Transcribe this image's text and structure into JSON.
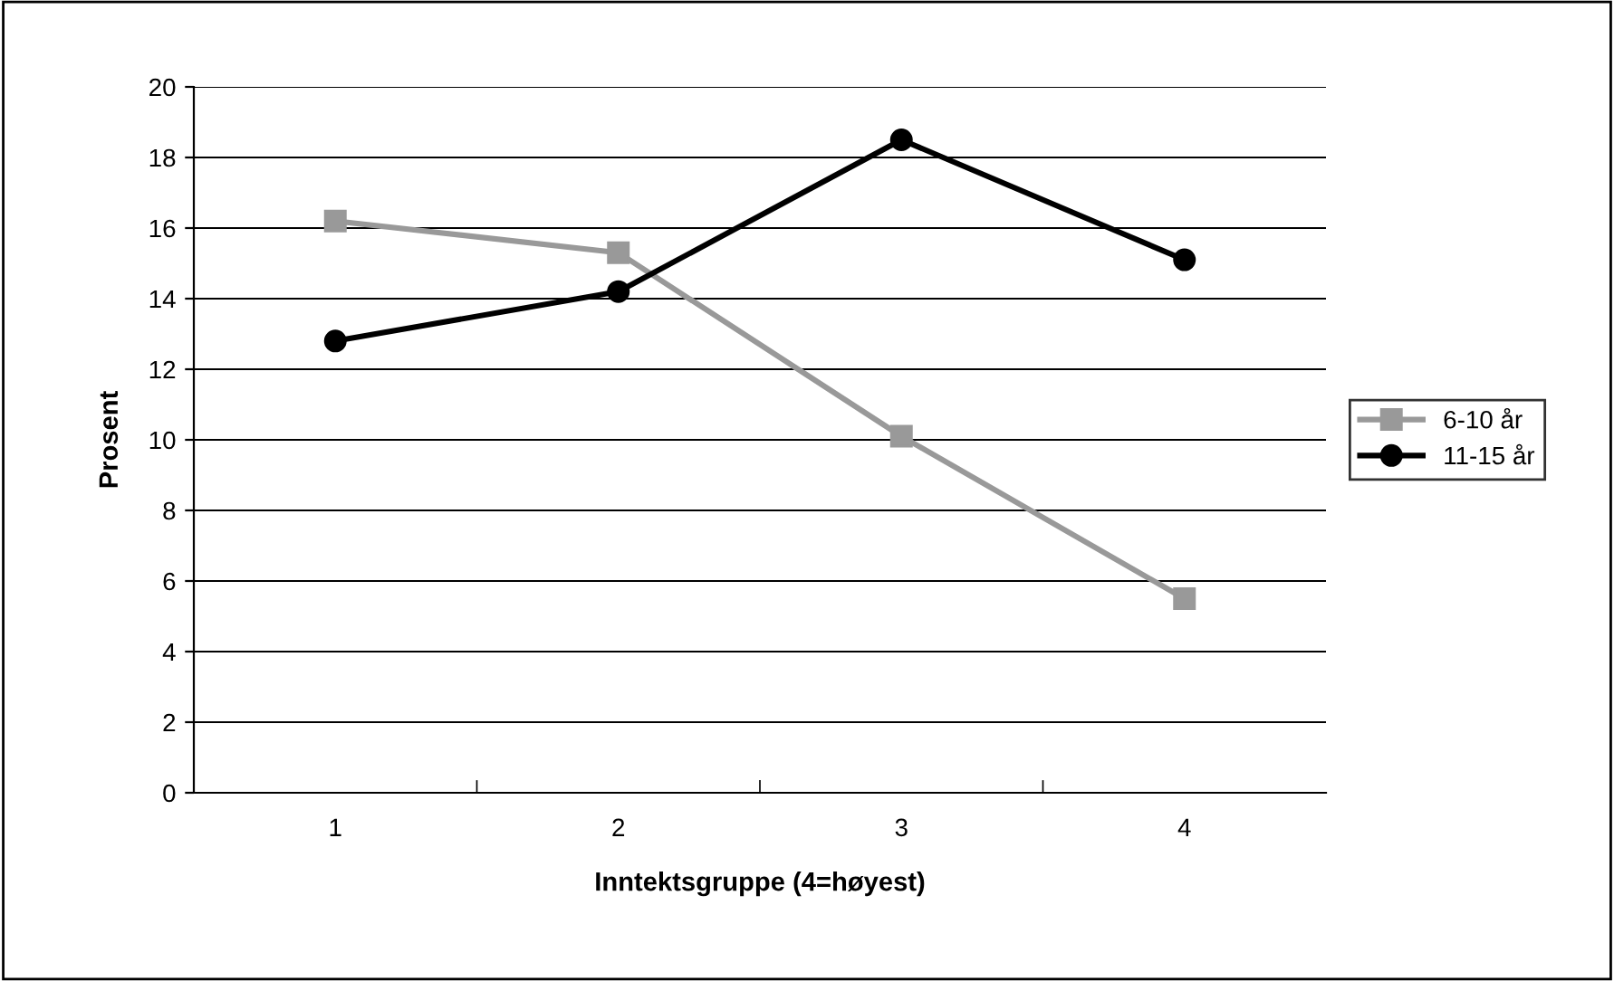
{
  "chart_data": {
    "type": "line",
    "xlabel": "Inntektsgruppe (4=høyest)",
    "ylabel": "Prosent",
    "categories": [
      "1",
      "2",
      "3",
      "4"
    ],
    "series": [
      {
        "name": "6-10 år",
        "color": "#999999",
        "marker": "square",
        "values": [
          16.2,
          15.3,
          10.1,
          5.5
        ]
      },
      {
        "name": "11-15 år",
        "color": "#000000",
        "marker": "circle",
        "values": [
          12.8,
          14.2,
          18.5,
          15.1
        ]
      }
    ],
    "ylim": [
      0,
      20
    ],
    "yticks": [
      0,
      2,
      4,
      6,
      8,
      10,
      12,
      14,
      16,
      18,
      20
    ],
    "grid": "y",
    "legend": "right",
    "line_style": "solid"
  }
}
